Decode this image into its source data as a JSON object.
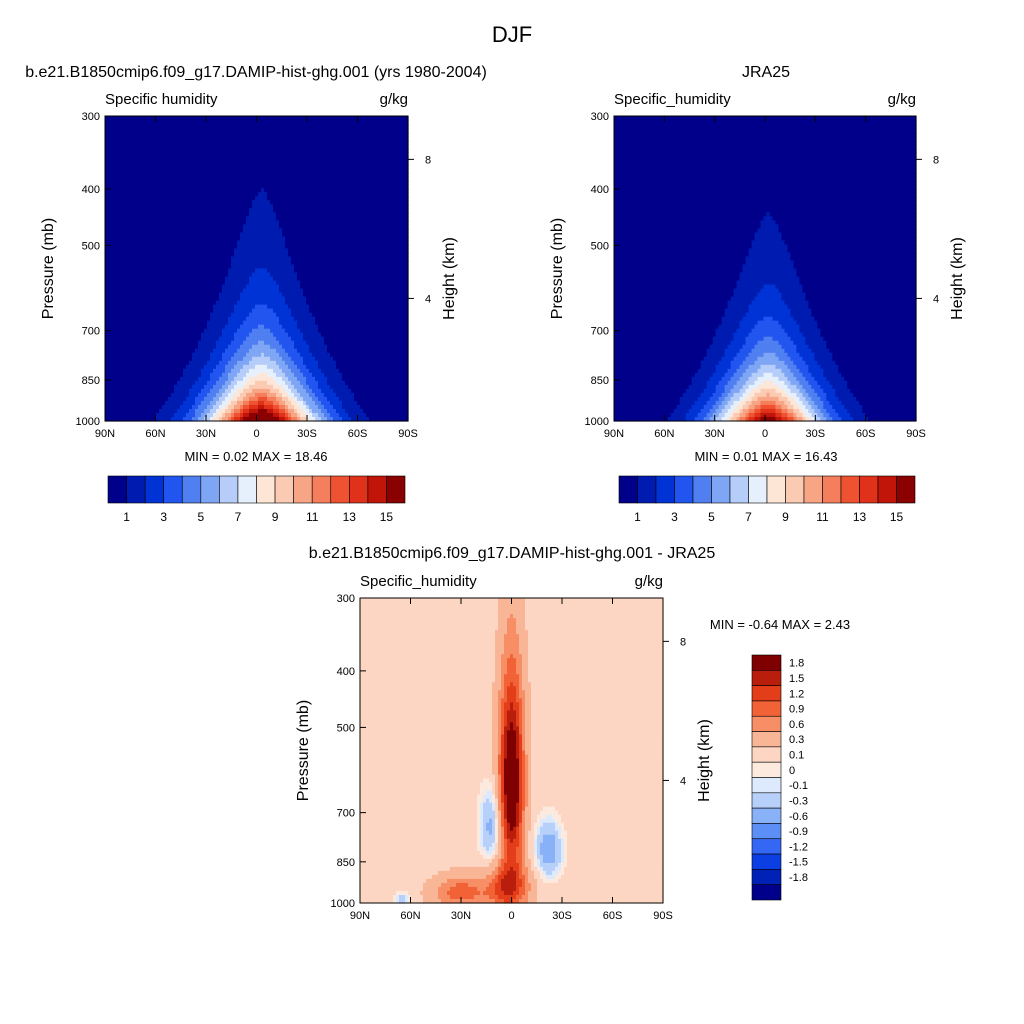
{
  "page_title": "DJF",
  "colors": {
    "model_obs_scale": [
      "#00008a",
      "#001cb0",
      "#0033d6",
      "#2255f0",
      "#4f7ff0",
      "#7ea6f4",
      "#b5cdf8",
      "#e6f0fc",
      "#fde6d5",
      "#fbcab2",
      "#f8a585",
      "#f57f5c",
      "#ee5230",
      "#e0321a",
      "#c01508",
      "#8b0000"
    ],
    "difference_scale": [
      "#00008a",
      "#0021b6",
      "#0b3fe3",
      "#3468f4",
      "#5b8ff6",
      "#89b1f8",
      "#b7d0fa",
      "#dde9fc",
      "#fdeadf",
      "#fcd6c3",
      "#f9b697",
      "#f78e65",
      "#f26237",
      "#e33d1a",
      "#b91e0c",
      "#7e0000"
    ]
  },
  "chart_data": [
    {
      "type": "heatmap",
      "title": "b.e21.B1850cmip6.f09_g17.DAMIP-hist-ghg.001 (yrs 1980-2004)",
      "left_subtitle": "Specific humidity",
      "right_subtitle": "g/kg",
      "ylabel": "Pressure (mb)",
      "y2label": "Height (km)",
      "x_ticks": [
        "90N",
        "60N",
        "30N",
        "0",
        "30S",
        "60S",
        "90S"
      ],
      "y_ticks": [
        "300",
        "400",
        "500",
        "700",
        "850",
        "1000"
      ],
      "y2_ticks": [
        "8",
        "4"
      ],
      "xlim": [
        90,
        -90
      ],
      "ylim": [
        1000,
        300
      ],
      "y_scale": "log",
      "stats": {
        "min_label": "MIN =",
        "min": "0.02",
        "max_label": "MAX =",
        "max": "18.46"
      },
      "levels": [
        1,
        2,
        3,
        4,
        5,
        6,
        7,
        8,
        9,
        10,
        11,
        12,
        13,
        14,
        15
      ],
      "colorbar_labels": [
        "1",
        "3",
        "5",
        "7",
        "9",
        "11",
        "13",
        "15"
      ],
      "colorbar_orientation": "horizontal",
      "field": {
        "peak": 18.4,
        "peak_lat": -3,
        "surface_width": 33,
        "upper_width": 19,
        "width_exponent": 1.6,
        "decay": 3.4,
        "lower_bound": 0.02
      }
    },
    {
      "type": "heatmap",
      "title": "JRA25",
      "left_subtitle": "Specific_humidity",
      "right_subtitle": "g/kg",
      "ylabel": "Pressure (mb)",
      "y2label": "Height (km)",
      "x_ticks": [
        "90N",
        "60N",
        "30N",
        "0",
        "30S",
        "60S",
        "90S"
      ],
      "y_ticks": [
        "300",
        "400",
        "500",
        "700",
        "850",
        "1000"
      ],
      "y2_ticks": [
        "8",
        "4"
      ],
      "xlim": [
        90,
        -90
      ],
      "ylim": [
        1000,
        300
      ],
      "y_scale": "log",
      "stats": {
        "min_label": "MIN =",
        "min": "0.01",
        "max_label": "MAX =",
        "max": "16.43"
      },
      "levels": [
        1,
        2,
        3,
        4,
        5,
        6,
        7,
        8,
        9,
        10,
        11,
        12,
        13,
        14,
        15
      ],
      "colorbar_labels": [
        "1",
        "3",
        "5",
        "7",
        "9",
        "11",
        "13",
        "15"
      ],
      "colorbar_orientation": "horizontal",
      "field": {
        "peak": 16.4,
        "peak_lat": -2,
        "surface_width": 32,
        "upper_width": 18,
        "width_exponent": 1.6,
        "decay": 3.5,
        "lower_bound": 0.01
      }
    },
    {
      "type": "heatmap",
      "title": "b.e21.B1850cmip6.f09_g17.DAMIP-hist-ghg.001 - JRA25",
      "left_subtitle": "Specific_humidity",
      "right_subtitle": "g/kg",
      "ylabel": "Pressure (mb)",
      "y2label": "Height (km)",
      "x_ticks": [
        "90N",
        "60N",
        "30N",
        "0",
        "30S",
        "60S",
        "90S"
      ],
      "y_ticks": [
        "300",
        "400",
        "500",
        "700",
        "850",
        "1000"
      ],
      "y2_ticks": [
        "8",
        "4"
      ],
      "xlim": [
        90,
        -90
      ],
      "ylim": [
        1000,
        300
      ],
      "y_scale": "log",
      "stats": {
        "min_label": "MIN =",
        "min": "-0.64",
        "max_label": "MAX =",
        "max": "2.43"
      },
      "levels": [
        -1.8,
        -1.5,
        -1.2,
        -0.9,
        -0.6,
        -0.3,
        -0.1,
        0,
        0.1,
        0.3,
        0.6,
        0.9,
        1.2,
        1.5,
        1.8
      ],
      "colorbar_labels": [
        "1.8",
        "1.5",
        "1.2",
        "0.9",
        "0.6",
        "0.3",
        "0.1",
        "0",
        "-0.1",
        "-0.3",
        "-0.6",
        "-0.9",
        "-1.2",
        "-1.5",
        "-1.8"
      ],
      "colorbar_orientation": "vertical",
      "features": [
        {
          "kind": "background",
          "value": 0.2
        },
        {
          "kind": "blob",
          "lat": 0,
          "p": 620,
          "lat_width": 7,
          "p_width": 230,
          "amp": 2.2
        },
        {
          "kind": "blob",
          "lat": 2,
          "p": 940,
          "lat_width": 12,
          "p_width": 90,
          "amp": 1.2
        },
        {
          "kind": "blob",
          "lat": 30,
          "p": 960,
          "lat_width": 16,
          "p_width": 60,
          "amp": 0.9
        },
        {
          "kind": "blob",
          "lat": 12,
          "p": 740,
          "lat_width": 7,
          "p_width": 110,
          "amp": -0.6
        },
        {
          "kind": "blob",
          "lat": -22,
          "p": 810,
          "lat_width": 8,
          "p_width": 90,
          "amp": -0.7
        },
        {
          "kind": "blob",
          "lat": 65,
          "p": 985,
          "lat_width": 5,
          "p_width": 25,
          "amp": -0.4
        }
      ]
    }
  ]
}
